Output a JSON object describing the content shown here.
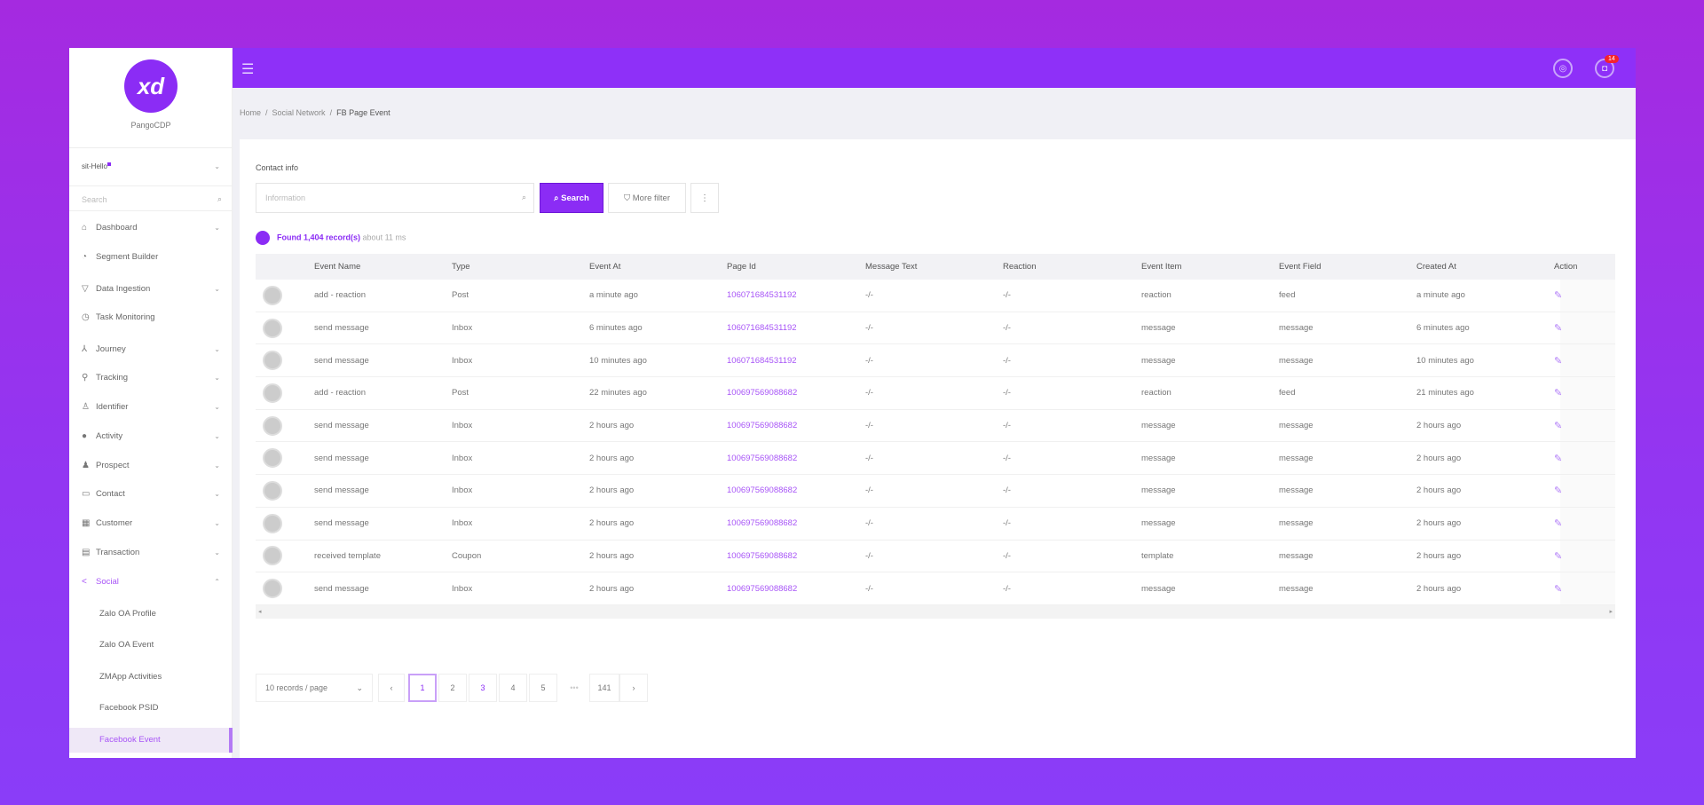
{
  "colors": {
    "accent": "#8b2cf5",
    "topbar": "#8e30f8",
    "badge": "#f5222d"
  },
  "brand": {
    "name": "PangoCDP",
    "logo_text": "xd"
  },
  "workspace": "sit-Hello",
  "sidebar": {
    "search_placeholder": "Search",
    "items": [
      {
        "label": "Dashboard",
        "icon": "home-icon",
        "chevron": true
      },
      {
        "label": "Segment Builder",
        "icon": "pie-chart-icon",
        "chevron": false
      },
      {
        "label": "Data Ingestion",
        "icon": "funnel-icon",
        "chevron": true
      },
      {
        "label": "Task Monitoring",
        "icon": "clock-icon",
        "chevron": false
      },
      {
        "label": "Journey",
        "icon": "journey-icon",
        "chevron": true
      },
      {
        "label": "Tracking",
        "icon": "tracking-icon",
        "chevron": true
      },
      {
        "label": "Identifier",
        "icon": "user-icon",
        "chevron": true
      },
      {
        "label": "Activity",
        "icon": "activity-icon",
        "chevron": true
      },
      {
        "label": "Prospect",
        "icon": "prospect-icon",
        "chevron": true
      },
      {
        "label": "Contact",
        "icon": "contact-icon",
        "chevron": true
      },
      {
        "label": "Customer",
        "icon": "customer-icon",
        "chevron": true
      },
      {
        "label": "Transaction",
        "icon": "transaction-icon",
        "chevron": true
      },
      {
        "label": "Social",
        "icon": "share-icon",
        "chevron": true,
        "active": true
      }
    ],
    "subitems": [
      "Zalo OA Profile",
      "Zalo OA Event",
      "ZMApp Activities",
      "Facebook PSID",
      "Facebook Event"
    ],
    "selected_subitem": "Facebook Event"
  },
  "topbar": {
    "notification_count": "14",
    "icons": [
      "support-icon",
      "bell-icon",
      "apps-icon",
      "user-icon"
    ]
  },
  "breadcrumb": [
    "Home",
    "Social Network",
    "FB Page Event"
  ],
  "filter": {
    "label": "Contact info",
    "placeholder": "Information",
    "search_label": "Search",
    "more_filter_label": "More filter"
  },
  "found": {
    "text": "Found 1,404 record(s)",
    "time": "about 11 ms"
  },
  "table": {
    "columns": [
      "Event Name",
      "Type",
      "Event At",
      "Page Id",
      "Message Text",
      "Reaction",
      "Event Item",
      "Event Field",
      "Created At",
      "Action"
    ],
    "rows": [
      [
        "add - reaction",
        "Post",
        "a minute ago",
        "106071684531192",
        "-/-",
        "-/-",
        "reaction",
        "feed",
        "a minute ago"
      ],
      [
        "send message",
        "Inbox",
        "6 minutes ago",
        "106071684531192",
        "-/-",
        "-/-",
        "message",
        "message",
        "6 minutes ago"
      ],
      [
        "send message",
        "Inbox",
        "10 minutes ago",
        "106071684531192",
        "-/-",
        "-/-",
        "message",
        "message",
        "10 minutes ago"
      ],
      [
        "add - reaction",
        "Post",
        "22 minutes ago",
        "100697569088682",
        "-/-",
        "-/-",
        "reaction",
        "feed",
        "21 minutes ago"
      ],
      [
        "send message",
        "Inbox",
        "2 hours ago",
        "100697569088682",
        "-/-",
        "-/-",
        "message",
        "message",
        "2 hours ago"
      ],
      [
        "send message",
        "Inbox",
        "2 hours ago",
        "100697569088682",
        "-/-",
        "-/-",
        "message",
        "message",
        "2 hours ago"
      ],
      [
        "send message",
        "Inbox",
        "2 hours ago",
        "100697569088682",
        "-/-",
        "-/-",
        "message",
        "message",
        "2 hours ago"
      ],
      [
        "send message",
        "Inbox",
        "2 hours ago",
        "100697569088682",
        "-/-",
        "-/-",
        "message",
        "message",
        "2 hours ago"
      ],
      [
        "received template",
        "Coupon",
        "2 hours ago",
        "100697569088682",
        "-/-",
        "-/-",
        "template",
        "message",
        "2 hours ago"
      ],
      [
        "send message",
        "Inbox",
        "2 hours ago",
        "100697569088682",
        "-/-",
        "-/-",
        "message",
        "message",
        "2 hours ago"
      ]
    ]
  },
  "pagination": {
    "page_size": "10 records / page",
    "pages": [
      "1",
      "2",
      "3",
      "4",
      "5"
    ],
    "ellipsis": "•••",
    "last": "141",
    "current": "1"
  }
}
